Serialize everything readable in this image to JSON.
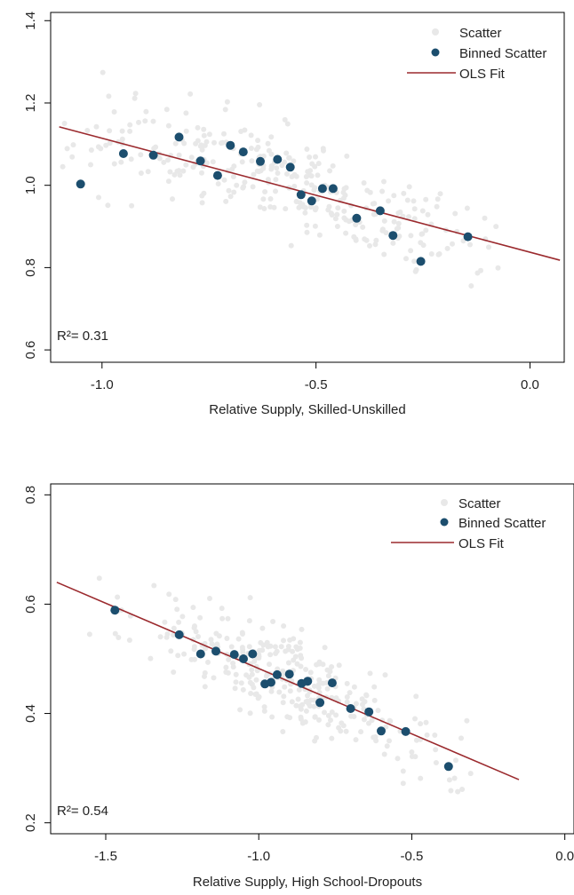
{
  "colors": {
    "scatter": "#e8e8e8",
    "binned": "#1c4e6e",
    "fit": "#9b2a2e",
    "frame": "#000000"
  },
  "chart_data": [
    {
      "type": "scatter",
      "title": "",
      "xlabel": "Relative Supply, Skilled-Unskilled",
      "ylabel": "",
      "xlim": [
        -1.12,
        0.08
      ],
      "ylim": [
        0.57,
        1.42
      ],
      "x_ticks": [
        -1.0,
        -0.5,
        0.0
      ],
      "x_tick_labels": [
        "-1.0",
        "-0.5",
        "0.0"
      ],
      "y_ticks": [
        0.6,
        0.8,
        1.0,
        1.2,
        1.4
      ],
      "y_tick_labels": [
        "0.6",
        "0.8",
        "1.0",
        "1.2",
        "1.4"
      ],
      "legend": {
        "position": "top-right",
        "entries": [
          "Scatter",
          "Binned Scatter",
          "OLS Fit"
        ]
      },
      "annotation": "R²= 0.31",
      "fit": {
        "x": [
          -1.1,
          0.07
        ],
        "y": [
          1.142,
          0.818
        ]
      },
      "binned_points": [
        {
          "x": -1.05,
          "y": 1.003
        },
        {
          "x": -0.95,
          "y": 1.077
        },
        {
          "x": -0.88,
          "y": 1.073
        },
        {
          "x": -0.82,
          "y": 1.117
        },
        {
          "x": -0.77,
          "y": 1.059
        },
        {
          "x": -0.73,
          "y": 1.024
        },
        {
          "x": -0.7,
          "y": 1.097
        },
        {
          "x": -0.67,
          "y": 1.081
        },
        {
          "x": -0.63,
          "y": 1.058
        },
        {
          "x": -0.59,
          "y": 1.063
        },
        {
          "x": -0.56,
          "y": 1.044
        },
        {
          "x": -0.535,
          "y": 0.977
        },
        {
          "x": -0.51,
          "y": 0.962
        },
        {
          "x": -0.485,
          "y": 0.992
        },
        {
          "x": -0.46,
          "y": 0.992
        },
        {
          "x": -0.405,
          "y": 0.92
        },
        {
          "x": -0.35,
          "y": 0.938
        },
        {
          "x": -0.32,
          "y": 0.878
        },
        {
          "x": -0.255,
          "y": 0.815
        },
        {
          "x": -0.145,
          "y": 0.875
        }
      ]
    },
    {
      "type": "scatter",
      "title": "",
      "xlabel": "Relative Supply, High School-Dropouts",
      "ylabel": "",
      "xlim": [
        -1.68,
        0.03
      ],
      "ylim": [
        0.18,
        0.82
      ],
      "x_ticks": [
        -1.5,
        -1.0,
        -0.5,
        0.0
      ],
      "x_tick_labels": [
        "-1.5",
        "-1.0",
        "-0.5",
        "0.0"
      ],
      "y_ticks": [
        0.2,
        0.4,
        0.6,
        0.8
      ],
      "y_tick_labels": [
        "0.2",
        "0.4",
        "0.6",
        "0.8"
      ],
      "legend": {
        "position": "top-right",
        "entries": [
          "Scatter",
          "Binned Scatter",
          "OLS Fit"
        ]
      },
      "annotation": "R²= 0.54",
      "fit": {
        "x": [
          -1.66,
          -0.15
        ],
        "y": [
          0.64,
          0.279
        ]
      },
      "binned_points": [
        {
          "x": -1.47,
          "y": 0.589
        },
        {
          "x": -1.26,
          "y": 0.544
        },
        {
          "x": -1.19,
          "y": 0.509
        },
        {
          "x": -1.14,
          "y": 0.514
        },
        {
          "x": -1.08,
          "y": 0.508
        },
        {
          "x": -1.05,
          "y": 0.5
        },
        {
          "x": -1.02,
          "y": 0.509
        },
        {
          "x": -0.98,
          "y": 0.454
        },
        {
          "x": -0.96,
          "y": 0.457
        },
        {
          "x": -0.94,
          "y": 0.471
        },
        {
          "x": -0.9,
          "y": 0.472
        },
        {
          "x": -0.86,
          "y": 0.455
        },
        {
          "x": -0.84,
          "y": 0.459
        },
        {
          "x": -0.8,
          "y": 0.42
        },
        {
          "x": -0.76,
          "y": 0.456
        },
        {
          "x": -0.7,
          "y": 0.409
        },
        {
          "x": -0.64,
          "y": 0.403
        },
        {
          "x": -0.6,
          "y": 0.368
        },
        {
          "x": -0.52,
          "y": 0.367
        },
        {
          "x": -0.38,
          "y": 0.303
        }
      ]
    }
  ]
}
